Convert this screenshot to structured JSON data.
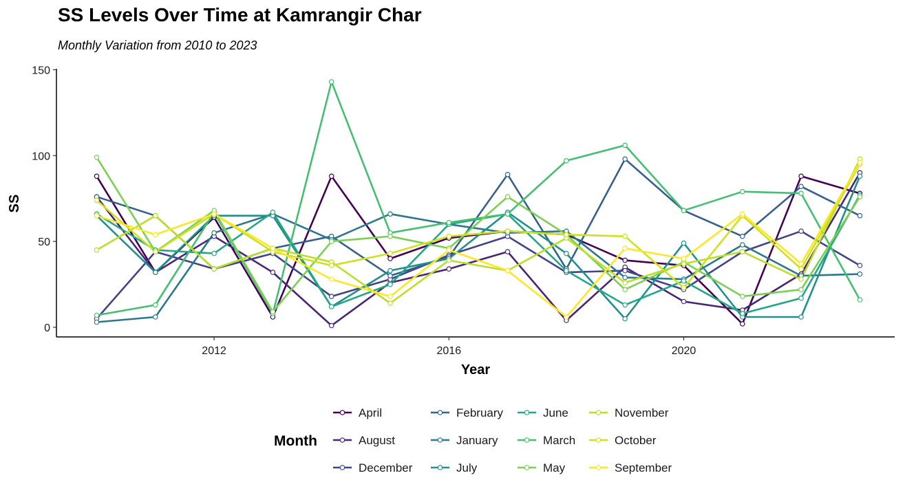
{
  "chart_data": {
    "type": "line",
    "title": "SS Levels Over Time at Kamrangir Char",
    "subtitle": "Monthly Variation from 2010 to 2023",
    "xlabel": "Year",
    "ylabel": "SS",
    "xlim": [
      2009.6,
      2023.4
    ],
    "ylim": [
      -5,
      150
    ],
    "xticks": [
      2012,
      2016,
      2020
    ],
    "yticks": [
      0,
      50,
      100,
      150
    ],
    "grid": false,
    "legend_title": "Month",
    "legend_position": "bottom",
    "x": [
      2010,
      2011,
      2012,
      2013,
      2014,
      2015,
      2016,
      2017,
      2018,
      2019,
      2020,
      2021,
      2022,
      2023
    ],
    "series": [
      {
        "name": "April",
        "color": "#440154",
        "values": [
          88,
          32,
          64,
          6,
          88,
          40,
          52,
          56,
          54,
          39,
          36,
          2,
          88,
          78
        ]
      },
      {
        "name": "August",
        "color": "#482576",
        "values": [
          76,
          32,
          53,
          32,
          1,
          26,
          34,
          44,
          4,
          35,
          15,
          10,
          31,
          90
        ]
      },
      {
        "name": "December",
        "color": "#414487",
        "values": [
          5,
          44,
          34,
          43,
          18,
          28,
          42,
          53,
          32,
          33,
          22,
          44,
          56,
          36
        ]
      },
      {
        "name": "February",
        "color": "#35608D",
        "values": [
          76,
          65,
          34,
          46,
          53,
          30,
          41,
          89,
          34,
          98,
          68,
          53,
          82,
          65
        ]
      },
      {
        "name": "January",
        "color": "#2A788E",
        "values": [
          3,
          6,
          55,
          66,
          51,
          66,
          60,
          55,
          56,
          29,
          28,
          48,
          30,
          31
        ]
      },
      {
        "name": "July",
        "color": "#21908C",
        "values": [
          65,
          32,
          65,
          65,
          12,
          33,
          40,
          67,
          43,
          5,
          49,
          6,
          6,
          88
        ]
      },
      {
        "name": "June",
        "color": "#22A884",
        "values": [
          66,
          45,
          43,
          67,
          12,
          25,
          60,
          66,
          33,
          13,
          27,
          8,
          17,
          77
        ]
      },
      {
        "name": "March",
        "color": "#43BF71",
        "values": [
          7,
          13,
          67,
          8,
          143,
          55,
          61,
          66,
          97,
          106,
          68,
          79,
          78,
          16
        ]
      },
      {
        "name": "May",
        "color": "#7AD151",
        "values": [
          99,
          44,
          68,
          9,
          50,
          53,
          46,
          76,
          54,
          22,
          38,
          18,
          22,
          76
        ]
      },
      {
        "name": "November",
        "color": "#BBDF27",
        "values": [
          45,
          65,
          34,
          46,
          38,
          14,
          39,
          33,
          52,
          26,
          37,
          44,
          28,
          98
        ]
      },
      {
        "name": "October",
        "color": "#CFE11C",
        "values": [
          74,
          44,
          66,
          44,
          36,
          43,
          53,
          56,
          54,
          53,
          23,
          65,
          34,
          95
        ]
      },
      {
        "name": "September",
        "color": "#FDE725",
        "values": [
          65,
          54,
          66,
          46,
          28,
          18,
          45,
          33,
          6,
          46,
          40,
          66,
          37,
          96
        ]
      }
    ]
  }
}
